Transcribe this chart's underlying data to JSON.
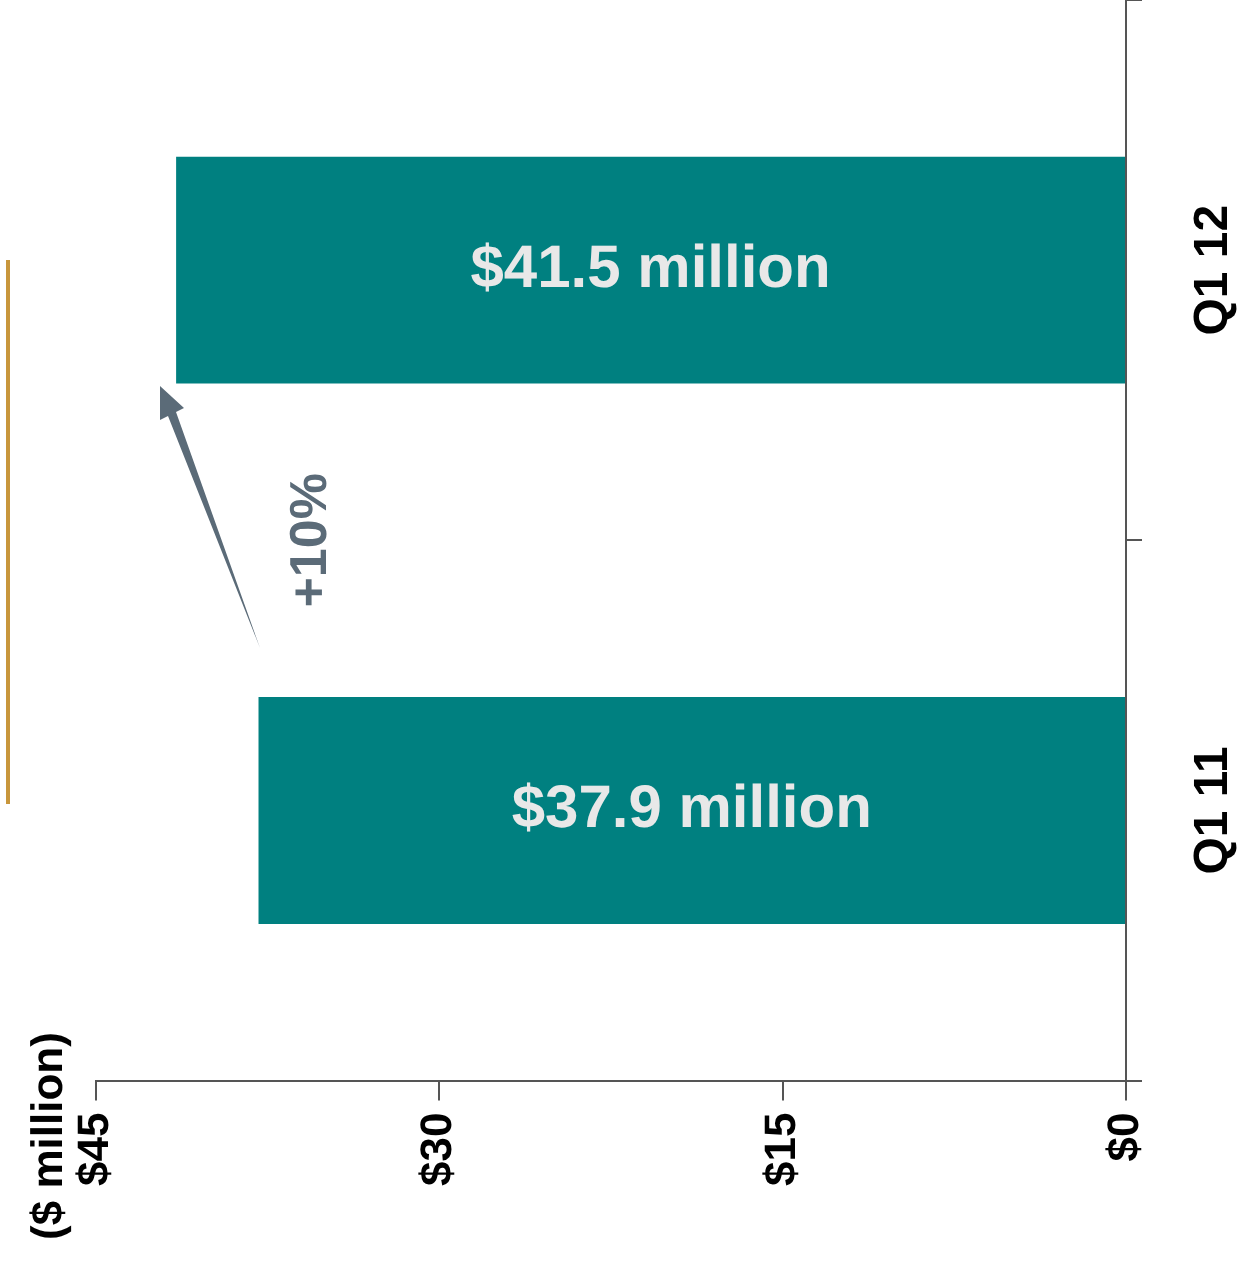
{
  "chart_data": {
    "type": "bar",
    "orientation": "horizontal",
    "categories": [
      "Q1 12",
      "Q1 11"
    ],
    "values": [
      41.5,
      37.9
    ],
    "value_labels": [
      "$41.5 million",
      "$37.9 million"
    ],
    "color": "#008080",
    "xlim": [
      45,
      0
    ],
    "xticks": [
      {
        "value": 45,
        "label": "$45"
      },
      {
        "value": 30,
        "label": "$30"
      },
      {
        "value": 15,
        "label": "$15"
      },
      {
        "value": 0,
        "label": "$0"
      }
    ],
    "annotations": [
      "($ million)",
      "+10%"
    ],
    "grid": false,
    "legend": false
  }
}
